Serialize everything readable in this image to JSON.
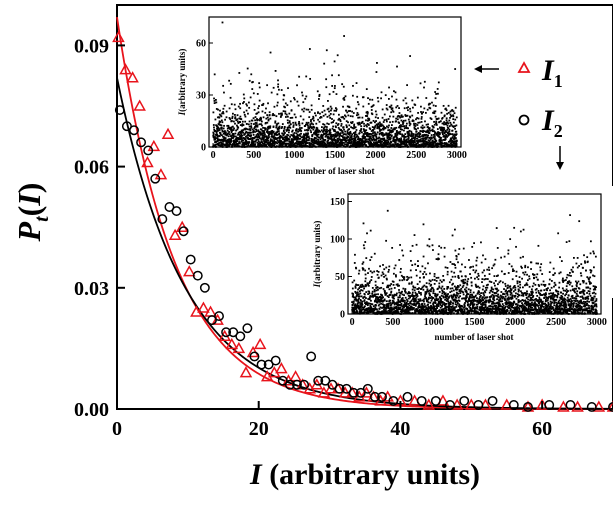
{
  "chart_data": [
    {
      "type": "scatter",
      "xlabel_italic": "I",
      "xlabel_rest": " (arbitrary units)",
      "ylabel_main": "P",
      "ylabel_sub": "t",
      "ylabel_open": "(",
      "ylabel_var": "I",
      "ylabel_close": ")",
      "xlim": [
        0,
        70
      ],
      "ylim": [
        0,
        0.1
      ],
      "xticks": [
        "0",
        "20",
        "40",
        "60"
      ],
      "xtick_values": [
        0,
        20,
        40,
        60
      ],
      "yticks": [
        "0.00",
        "0.03",
        "0.06",
        "0.09"
      ],
      "ytick_values": [
        0,
        0.03,
        0.06,
        0.09
      ],
      "legend": [
        {
          "symbol": "triangle",
          "italic": "I",
          "sub": "1",
          "color": "#e8141c"
        },
        {
          "symbol": "circle",
          "italic": "I",
          "sub": "2",
          "color": "#000000"
        }
      ],
      "series": [
        {
          "symbol": "triangle",
          "color": "#e8141c",
          "x": [
            0.2,
            1.2,
            2.2,
            3.2,
            4.3,
            5.2,
            6.2,
            7.2,
            8.2,
            9.2,
            10.2,
            11.2,
            12.2,
            13.2,
            14.2,
            15.2,
            16.2,
            17.2,
            18.2,
            19.2,
            20.2,
            21.2,
            22.2,
            23.2,
            24.2,
            25.2,
            26.2,
            27.2,
            28.2,
            29.2,
            30.2,
            31.2,
            32.2,
            33.2,
            34.2,
            35.2,
            36.2,
            37.2,
            38.2,
            40,
            42,
            44,
            46,
            48,
            50,
            52,
            55,
            58,
            60,
            63,
            65,
            68,
            70
          ],
          "y": [
            0.092,
            0.084,
            0.082,
            0.075,
            0.061,
            0.065,
            0.058,
            0.068,
            0.043,
            0.045,
            0.034,
            0.024,
            0.025,
            0.024,
            0.022,
            0.018,
            0.016,
            0.015,
            0.009,
            0.014,
            0.016,
            0.008,
            0.009,
            0.01,
            0.007,
            0.008,
            0.006,
            0.005,
            0.006,
            0.004,
            0.005,
            0.005,
            0.004,
            0.004,
            0.003,
            0.004,
            0.003,
            0.002,
            0.003,
            0.002,
            0.002,
            0.001,
            0.002,
            0.001,
            0.001,
            0.001,
            0.001,
            0.0005,
            0.001,
            0.0005,
            0.0005,
            0.0005,
            0.0005
          ]
        },
        {
          "symbol": "circle",
          "color": "#000000",
          "x": [
            0.4,
            1.4,
            2.4,
            3.4,
            4.4,
            5.4,
            6.4,
            7.4,
            8.4,
            9.4,
            10.4,
            11.4,
            12.4,
            13.4,
            14.4,
            15.4,
            16.4,
            17.4,
            18.4,
            19.4,
            20.4,
            21.4,
            22.4,
            23.4,
            24.4,
            25.4,
            26.4,
            27.4,
            28.4,
            29.4,
            30.4,
            31.4,
            32.4,
            33.4,
            34.4,
            35.4,
            36.4,
            37.4,
            39,
            41,
            43,
            45,
            47,
            49,
            51,
            53,
            56,
            58,
            61,
            64,
            67,
            70
          ],
          "y": [
            0.074,
            0.07,
            0.069,
            0.066,
            0.064,
            0.057,
            0.047,
            0.05,
            0.049,
            0.044,
            0.037,
            0.033,
            0.03,
            0.022,
            0.023,
            0.019,
            0.019,
            0.018,
            0.02,
            0.013,
            0.011,
            0.011,
            0.012,
            0.007,
            0.006,
            0.006,
            0.006,
            0.013,
            0.007,
            0.007,
            0.006,
            0.005,
            0.005,
            0.004,
            0.004,
            0.005,
            0.003,
            0.003,
            0.002,
            0.003,
            0.002,
            0.002,
            0.001,
            0.002,
            0.001,
            0.002,
            0.001,
            0.0005,
            0.001,
            0.001,
            0.0005,
            0.0005
          ]
        }
      ],
      "fits": [
        {
          "color": "#e8141c",
          "amplitude": 0.097,
          "decay": 8.3
        },
        {
          "color": "#000000",
          "amplitude": 0.082,
          "decay": 9.6
        }
      ]
    },
    {
      "type": "scatter",
      "name_var": "I",
      "ylabel_italic": "I",
      "ylabel_rest": "(arbitrary units)",
      "xlabel": "number of laser shot",
      "xlim": [
        -50,
        3050
      ],
      "ylim": [
        0,
        75
      ],
      "xticks": [
        "0",
        "500",
        "1000",
        "1500",
        "2000",
        "2500",
        "3000"
      ],
      "xtick_values": [
        0,
        500,
        1000,
        1500,
        2000,
        2500,
        3000
      ],
      "yticks": [
        "0",
        "30",
        "60"
      ],
      "ytick_values": [
        0,
        30,
        60
      ],
      "points": 3000,
      "mean": 8.3,
      "color": "#000000"
    },
    {
      "type": "scatter",
      "ylabel_italic": "I",
      "ylabel_rest": "(arbitrary units)",
      "xlabel": "number of laser shot",
      "xlim": [
        -50,
        3050
      ],
      "ylim": [
        0,
        160
      ],
      "xticks": [
        "0",
        "500",
        "1000",
        "1500",
        "2000",
        "2500",
        "3000"
      ],
      "xtick_values": [
        0,
        500,
        1000,
        1500,
        2000,
        2500,
        3000
      ],
      "yticks": [
        "0",
        "50",
        "100",
        "150"
      ],
      "ytick_values": [
        0,
        50,
        100,
        150
      ],
      "points": 3000,
      "mean": 20,
      "color": "#000000"
    }
  ]
}
